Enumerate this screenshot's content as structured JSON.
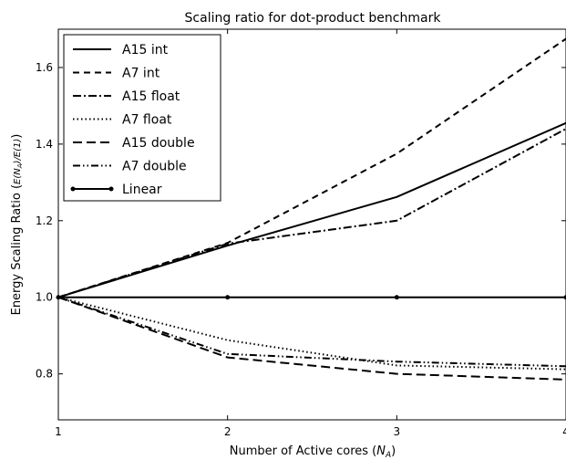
{
  "chart_data": {
    "type": "line",
    "title": "Scaling ratio for dot-product benchmark",
    "xlabel": "Number of Active cores (N_A)",
    "ylabel": "Energy Scaling Ratio (E(N_A)/E(1))",
    "xlim": [
      1,
      4
    ],
    "ylim": [
      0.68,
      1.7
    ],
    "xticks": [
      "1",
      "2",
      "3",
      "4"
    ],
    "yticks": [
      "0.8",
      "1.0",
      "1.2",
      "1.4",
      "1.6"
    ],
    "grid": false,
    "legend_position": "top-left",
    "x": [
      1,
      2,
      3,
      4
    ],
    "series": [
      {
        "name": "A15 int",
        "values": [
          1.0,
          1.135,
          1.262,
          1.455
        ],
        "style": "solid"
      },
      {
        "name": "A7 int",
        "values": [
          1.0,
          1.142,
          1.375,
          1.675
        ],
        "style": "dashed"
      },
      {
        "name": "A15 float",
        "values": [
          1.0,
          1.14,
          1.2,
          1.44
        ],
        "style": "dashdot"
      },
      {
        "name": "A7 float",
        "values": [
          1.0,
          0.888,
          0.822,
          0.812
        ],
        "style": "dotted"
      },
      {
        "name": "A15 double",
        "values": [
          1.0,
          0.843,
          0.8,
          0.785
        ],
        "style": "longdash"
      },
      {
        "name": "A7 double",
        "values": [
          1.0,
          0.852,
          0.832,
          0.82
        ],
        "style": "dashdotdot"
      },
      {
        "name": "Linear",
        "values": [
          1.0,
          1.0,
          1.0,
          1.0
        ],
        "style": "solid-marker"
      }
    ]
  }
}
